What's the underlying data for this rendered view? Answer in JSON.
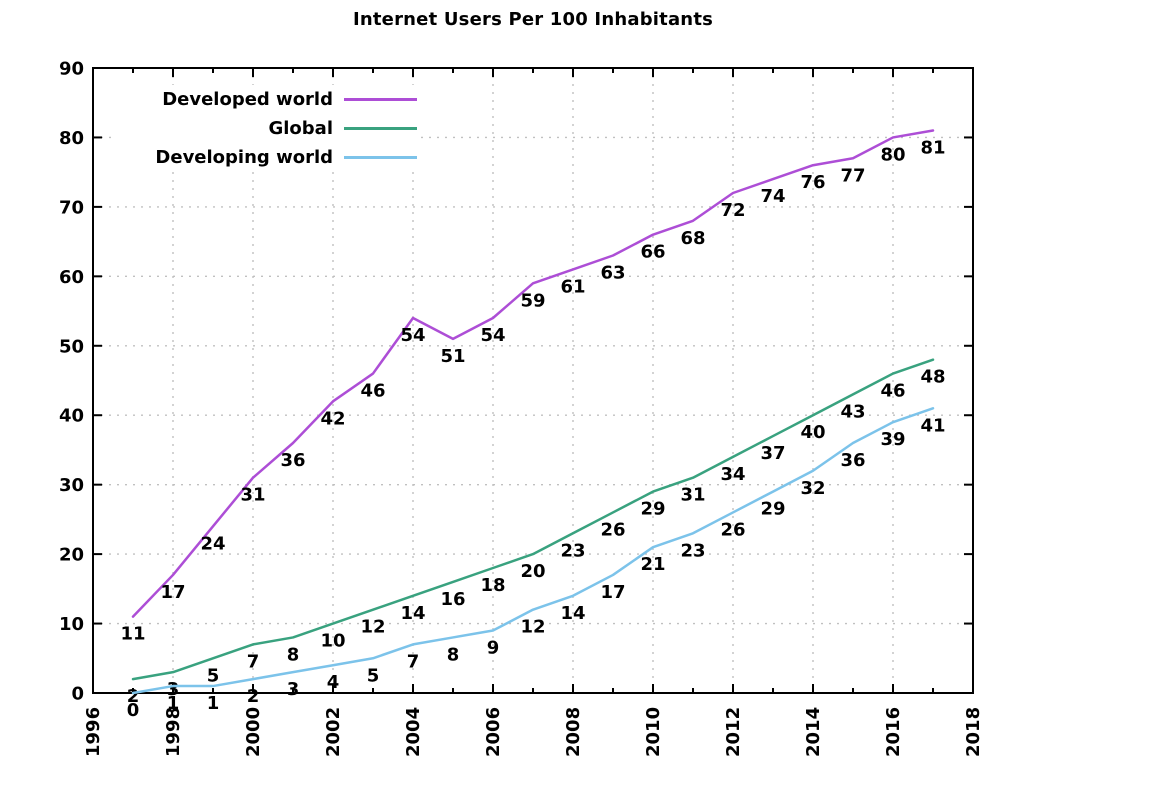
{
  "chart_data": {
    "type": "line",
    "title": "Internet Users Per 100 Inhabitants",
    "xlabel": "",
    "ylabel": "",
    "x": [
      1997,
      1998,
      1999,
      2000,
      2001,
      2002,
      2003,
      2004,
      2005,
      2006,
      2007,
      2008,
      2009,
      2010,
      2011,
      2012,
      2013,
      2014,
      2015,
      2016,
      2017
    ],
    "series": [
      {
        "name": "Developed world",
        "color": "#ad4ed6",
        "values": [
          11,
          17,
          24,
          31,
          36,
          42,
          46,
          54,
          51,
          54,
          59,
          61,
          63,
          66,
          68,
          72,
          74,
          76,
          77,
          80,
          81
        ]
      },
      {
        "name": "Global",
        "color": "#39a27f",
        "values": [
          2,
          3,
          5,
          7,
          8,
          10,
          12,
          14,
          16,
          18,
          20,
          23,
          26,
          29,
          31,
          34,
          37,
          40,
          43,
          46,
          48
        ]
      },
      {
        "name": "Developing world",
        "color": "#7cc3ea",
        "values": [
          0,
          1,
          1,
          2,
          3,
          4,
          5,
          7,
          8,
          9,
          12,
          14,
          17,
          21,
          23,
          26,
          29,
          32,
          36,
          39,
          41
        ]
      }
    ],
    "xlim": [
      1996,
      2018
    ],
    "ylim": [
      0,
      90
    ],
    "x_major_ticks": [
      1996,
      1998,
      2000,
      2002,
      2004,
      2006,
      2008,
      2010,
      2012,
      2014,
      2016,
      2018
    ],
    "x_minor_step": 1,
    "y_major_ticks": [
      0,
      10,
      20,
      30,
      40,
      50,
      60,
      70,
      80,
      90
    ],
    "grid": true,
    "grid_style": "dotted",
    "grid_color": "#c0c0c0",
    "axis_color": "#000000",
    "label_color": "#000000",
    "legend_position": "top-left",
    "point_labels_shown": true
  }
}
